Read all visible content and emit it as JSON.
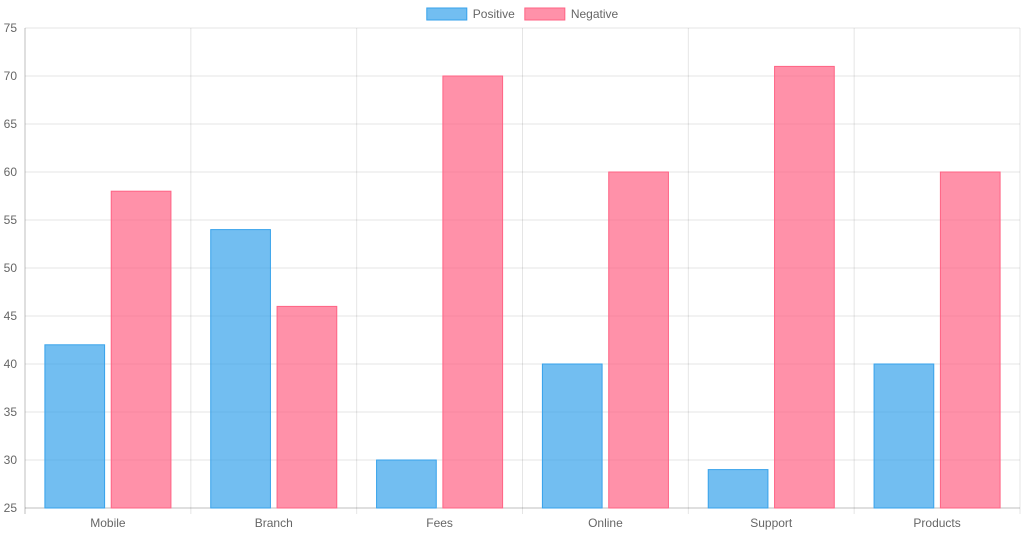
{
  "chart_data": {
    "type": "bar",
    "categories": [
      "Mobile",
      "Branch",
      "Fees",
      "Online",
      "Support",
      "Products"
    ],
    "series": [
      {
        "name": "Positive",
        "values": [
          42,
          54,
          30,
          40,
          29,
          40
        ],
        "color": "#36a2eb",
        "fill": "rgba(54,162,235,0.7)"
      },
      {
        "name": "Negative",
        "values": [
          58,
          46,
          70,
          60,
          71,
          60
        ],
        "color": "#ff6384",
        "fill": "rgba(255,99,132,0.7)"
      }
    ],
    "ylim": [
      25,
      75
    ],
    "yticks": [
      25,
      30,
      35,
      40,
      45,
      50,
      55,
      60,
      65,
      70,
      75
    ],
    "legend_position": "top-center",
    "grid": true
  }
}
